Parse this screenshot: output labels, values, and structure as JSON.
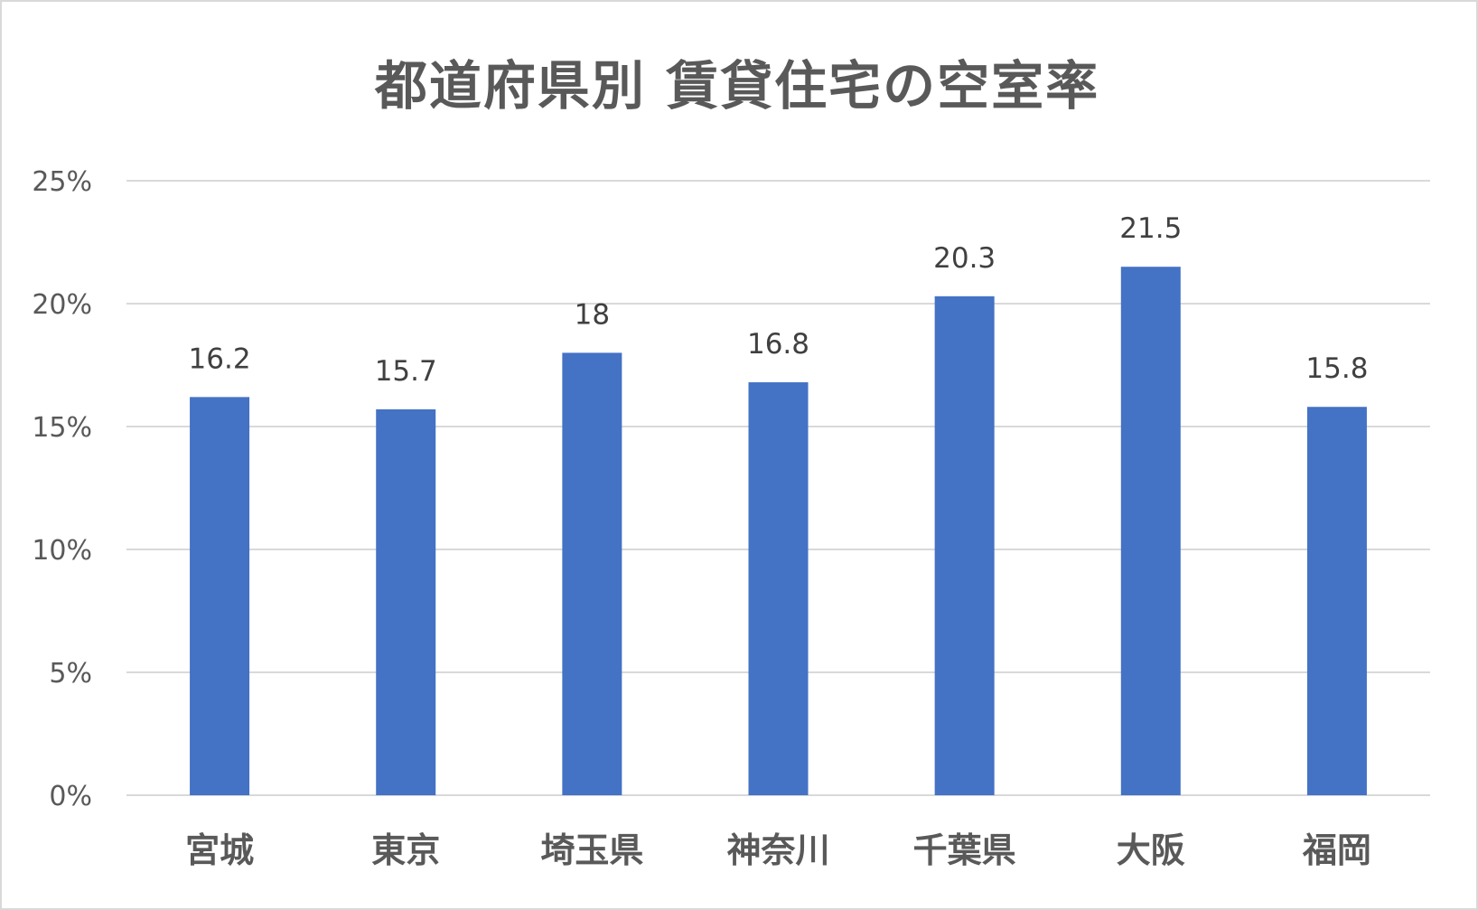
{
  "chart_data": {
    "type": "bar",
    "title": "都道府県別 賃貸住宅の空室率",
    "xlabel": "",
    "ylabel": "",
    "categories": [
      "宮城",
      "東京",
      "埼玉県",
      "神奈川",
      "千葉県",
      "大阪",
      "福岡"
    ],
    "values": [
      16.2,
      15.7,
      18,
      16.8,
      20.3,
      21.5,
      15.8
    ],
    "data_labels": [
      "16.2",
      "15.7",
      "18",
      "16.8",
      "20.3",
      "21.5",
      "15.8"
    ],
    "ylim": [
      0,
      25
    ],
    "yticks": [
      0,
      5,
      10,
      15,
      20,
      25
    ],
    "ytick_labels": [
      "0%",
      "5%",
      "10%",
      "15%",
      "20%",
      "25%"
    ],
    "grid": true,
    "legend": "none",
    "colors": {
      "bar": "#4472c4",
      "grid": "#d9d9d9",
      "text": "#595959"
    }
  }
}
